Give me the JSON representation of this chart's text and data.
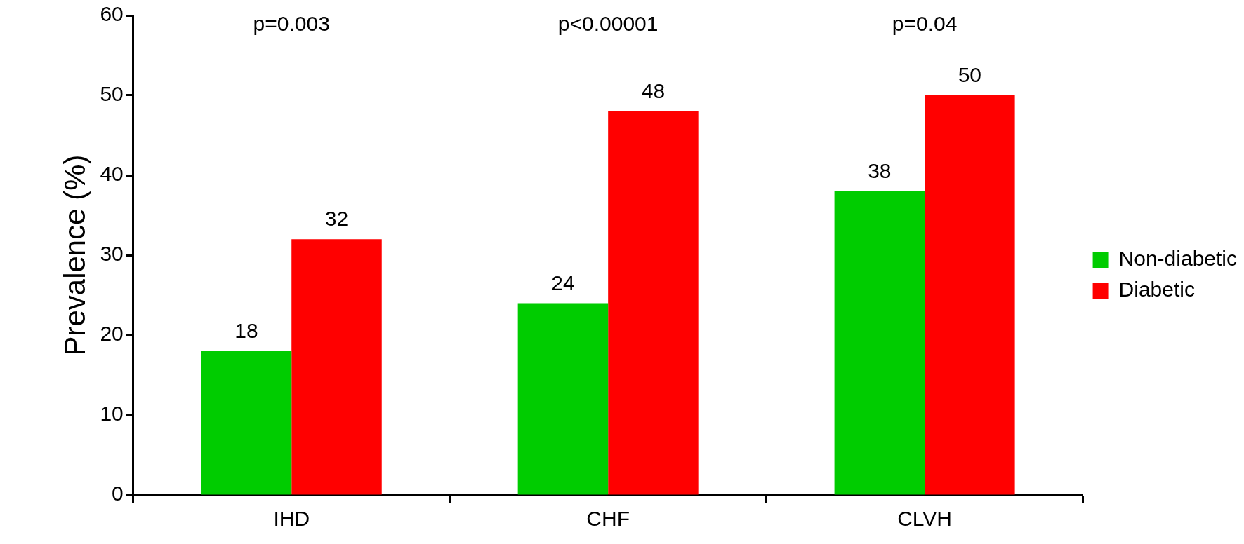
{
  "chart_data": {
    "type": "bar",
    "ylabel": "Prevalence (%)",
    "categories": [
      "IHD",
      "CHF",
      "CLVH"
    ],
    "series": [
      {
        "name": "Non-diabetic",
        "color": "#00cc00",
        "values": [
          18,
          24,
          38
        ]
      },
      {
        "name": "Diabetic",
        "color": "#ff0000",
        "values": [
          32,
          48,
          50
        ]
      }
    ],
    "ylim": [
      0,
      60
    ],
    "yticks": [
      0,
      10,
      20,
      30,
      40,
      50,
      60
    ],
    "grid": false,
    "legend": "right",
    "data_labels": true,
    "annotations": [
      "p=0.003",
      "p<0.00001",
      "p=0.04"
    ]
  }
}
